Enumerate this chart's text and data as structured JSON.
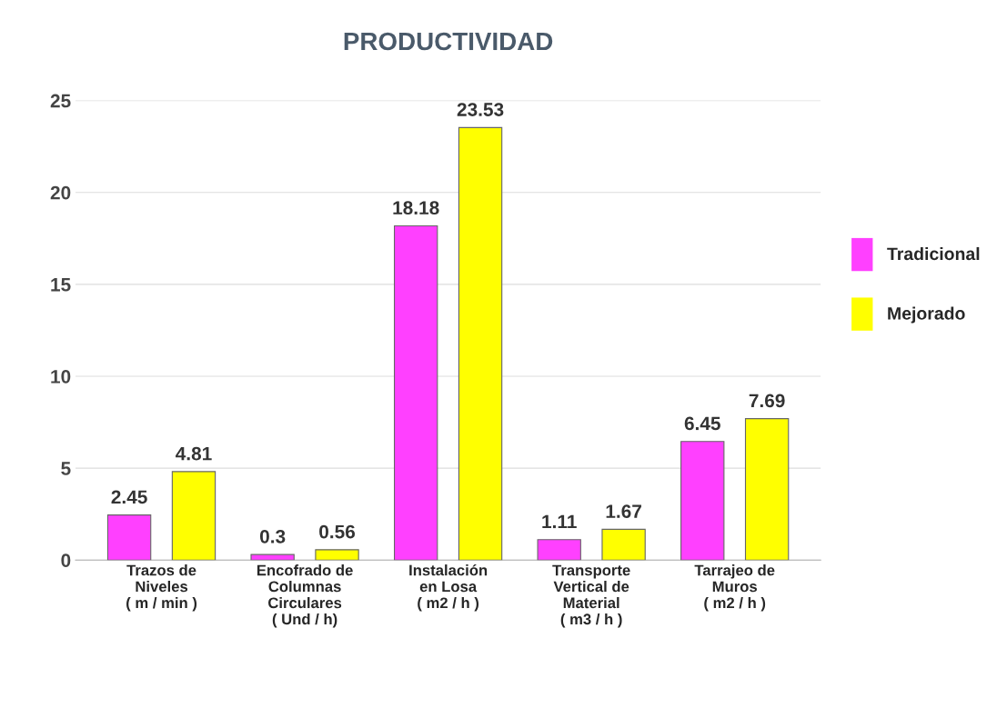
{
  "chart_data": {
    "type": "bar",
    "title": "PRODUCTIVIDAD",
    "categories": [
      "Trazos de\nNiveles\n( m / min )",
      "Encofrado de\nColumnas\nCirculares\n( Und / h)",
      "Instalación\nen Losa\n( m2 / h )",
      "Transporte\nVertical de\nMaterial\n( m3 / h )",
      "Tarrajeo de\nMuros\n( m2 / h )"
    ],
    "series": [
      {
        "name": "Tradicional",
        "color": "#ff40ff",
        "values": [
          2.45,
          0.3,
          18.18,
          1.11,
          6.45
        ]
      },
      {
        "name": "Mejorado",
        "color": "#ffff00",
        "values": [
          4.81,
          0.56,
          23.53,
          1.67,
          7.69
        ]
      }
    ],
    "ylim": [
      0,
      25
    ],
    "yticks": [
      0,
      5,
      10,
      15,
      20,
      25
    ],
    "grid": "y",
    "legend": "right",
    "data_labels": true
  }
}
